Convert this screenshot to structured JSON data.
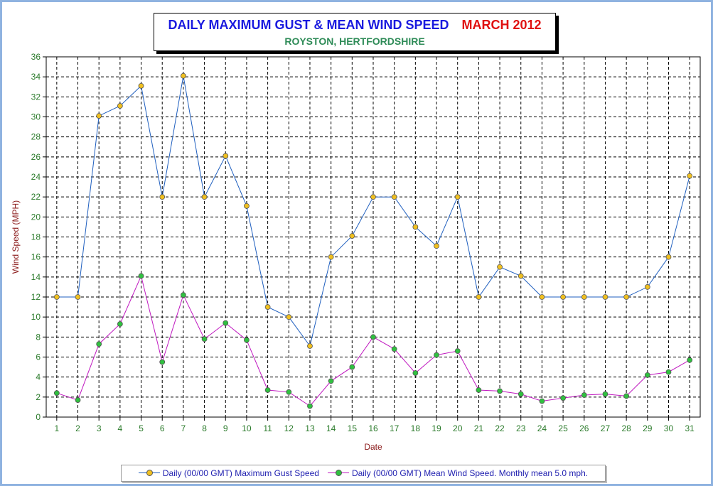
{
  "title": {
    "main": "DAILY MAXIMUM GUST & MEAN WIND SPEED",
    "date": "MARCH 2012",
    "subtitle": "ROYSTON, HERTFORDSHIRE"
  },
  "colors": {
    "gust_line": "#1f5fbf",
    "mean_line": "#c018c0",
    "gust_marker": "#f0c020",
    "mean_marker": "#30c040",
    "grid": "#000000",
    "tick_label": "#2a7a2a",
    "axis_label": "#8b1a1a",
    "frame": "#8fb3e0"
  },
  "chart_data": {
    "type": "line",
    "xlabel": "Date",
    "ylabel": "Wind Speed (MPH)",
    "ylim": [
      0,
      36
    ],
    "y_ticks": [
      0,
      2,
      4,
      6,
      8,
      10,
      12,
      14,
      16,
      18,
      20,
      22,
      24,
      26,
      28,
      30,
      32,
      34,
      36
    ],
    "grid": true,
    "legend_position": "bottom",
    "x": [
      1,
      2,
      3,
      4,
      5,
      6,
      7,
      8,
      9,
      10,
      11,
      12,
      13,
      14,
      15,
      16,
      17,
      18,
      19,
      20,
      21,
      22,
      23,
      24,
      25,
      26,
      27,
      28,
      29,
      30,
      31
    ],
    "series": [
      {
        "name": "Daily (00/00 GMT) Maximum Gust Speed",
        "values": [
          12,
          12,
          30.1,
          31.1,
          33.1,
          22,
          34.1,
          22,
          26.1,
          21.1,
          11,
          10,
          7.1,
          16,
          18.1,
          22,
          22,
          19,
          17.1,
          22,
          12,
          15,
          14.1,
          12,
          12,
          12,
          12,
          12,
          13,
          16,
          24.1
        ]
      },
      {
        "name": "Daily (00/00 GMT) Mean Wind Speed. Monthly mean 5.0 mph.",
        "values": [
          2.4,
          1.7,
          7.3,
          9.3,
          14.1,
          5.5,
          12.2,
          7.8,
          9.4,
          7.7,
          2.7,
          2.5,
          1.1,
          3.6,
          5.0,
          8.0,
          6.8,
          4.4,
          6.2,
          6.6,
          2.7,
          2.6,
          2.3,
          1.6,
          1.9,
          2.2,
          2.3,
          2.1,
          4.2,
          4.5,
          5.7
        ]
      }
    ]
  }
}
